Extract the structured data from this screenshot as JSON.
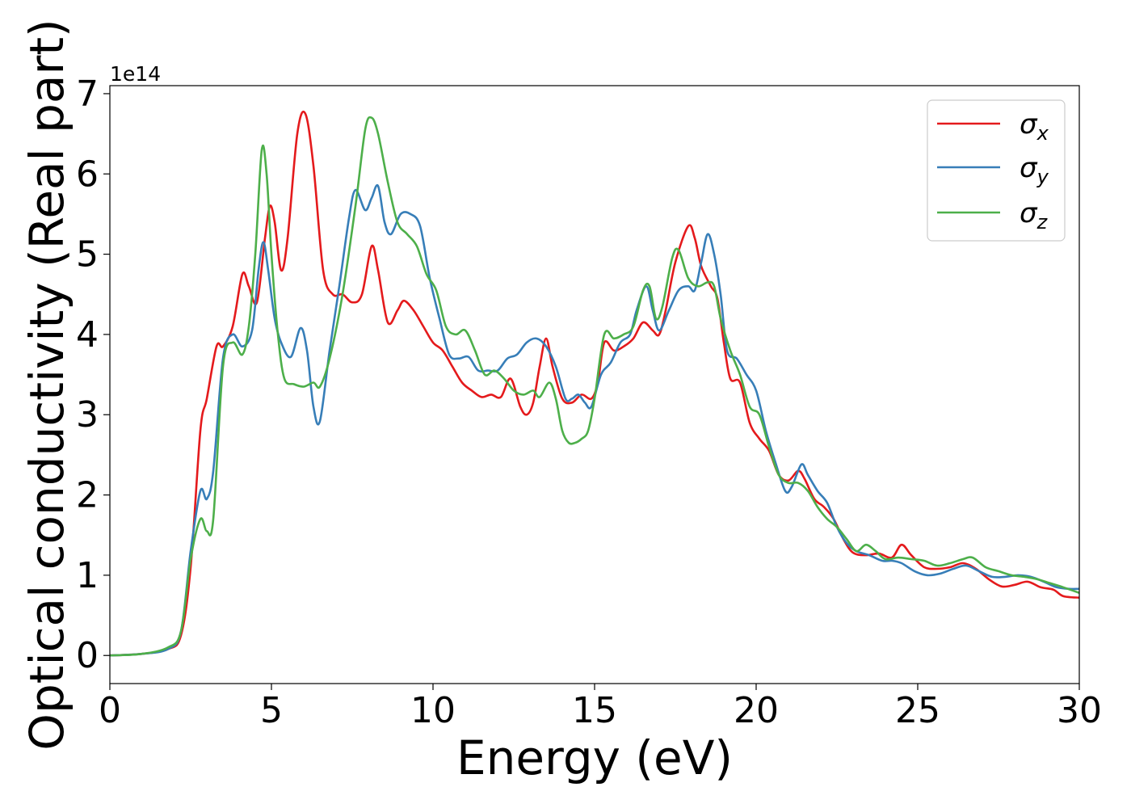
{
  "chart_data": {
    "type": "line",
    "xlabel": "Energy (eV)",
    "ylabel": "Optical conductivity (Real part)",
    "y_offset_label": "1e14",
    "xlim": [
      0,
      30
    ],
    "ylim": [
      -0.35,
      7.1
    ],
    "x_ticks": [
      0,
      5,
      10,
      15,
      20,
      25,
      30
    ],
    "x_tick_labels": [
      "0",
      "5",
      "10",
      "15",
      "20",
      "25",
      "30"
    ],
    "y_ticks": [
      0,
      1,
      2,
      3,
      4,
      5,
      6,
      7
    ],
    "y_tick_labels": [
      "0",
      "1",
      "2",
      "3",
      "4",
      "5",
      "6",
      "7"
    ],
    "grid": false,
    "legend_position": "top-right",
    "series": [
      {
        "name_base": "σ",
        "name_sub": "x",
        "color": "#e41a1c",
        "points": [
          [
            0,
            0
          ],
          [
            1,
            0.02
          ],
          [
            1.8,
            0.08
          ],
          [
            2.2,
            0.25
          ],
          [
            2.5,
            1.1
          ],
          [
            2.8,
            2.8
          ],
          [
            3,
            3.2
          ],
          [
            3.3,
            3.85
          ],
          [
            3.5,
            3.85
          ],
          [
            3.8,
            4.1
          ],
          [
            4.1,
            4.75
          ],
          [
            4.3,
            4.6
          ],
          [
            4.55,
            4.4
          ],
          [
            4.8,
            5.2
          ],
          [
            4.95,
            5.6
          ],
          [
            5.1,
            5.4
          ],
          [
            5.3,
            4.8
          ],
          [
            5.5,
            5.2
          ],
          [
            5.8,
            6.5
          ],
          [
            6.05,
            6.75
          ],
          [
            6.3,
            6.1
          ],
          [
            6.6,
            4.8
          ],
          [
            6.9,
            4.5
          ],
          [
            7.2,
            4.5
          ],
          [
            7.5,
            4.4
          ],
          [
            7.8,
            4.5
          ],
          [
            8.1,
            5.1
          ],
          [
            8.3,
            4.8
          ],
          [
            8.6,
            4.15
          ],
          [
            8.9,
            4.3
          ],
          [
            9.1,
            4.42
          ],
          [
            9.4,
            4.3
          ],
          [
            9.7,
            4.1
          ],
          [
            10,
            3.9
          ],
          [
            10.3,
            3.8
          ],
          [
            10.6,
            3.6
          ],
          [
            10.9,
            3.4
          ],
          [
            11.2,
            3.3
          ],
          [
            11.5,
            3.22
          ],
          [
            11.8,
            3.25
          ],
          [
            12.1,
            3.22
          ],
          [
            12.4,
            3.45
          ],
          [
            12.7,
            3.1
          ],
          [
            12.9,
            3.0
          ],
          [
            13.1,
            3.15
          ],
          [
            13.3,
            3.6
          ],
          [
            13.5,
            3.95
          ],
          [
            13.7,
            3.6
          ],
          [
            14,
            3.2
          ],
          [
            14.3,
            3.15
          ],
          [
            14.6,
            3.25
          ],
          [
            14.9,
            3.2
          ],
          [
            15.1,
            3.4
          ],
          [
            15.3,
            3.9
          ],
          [
            15.6,
            3.8
          ],
          [
            15.9,
            3.85
          ],
          [
            16.2,
            3.95
          ],
          [
            16.5,
            4.15
          ],
          [
            16.8,
            4.05
          ],
          [
            17,
            4.0
          ],
          [
            17.2,
            4.3
          ],
          [
            17.5,
            4.9
          ],
          [
            17.9,
            5.35
          ],
          [
            18.1,
            5.2
          ],
          [
            18.3,
            4.85
          ],
          [
            18.6,
            4.6
          ],
          [
            18.8,
            4.45
          ],
          [
            19,
            3.9
          ],
          [
            19.2,
            3.45
          ],
          [
            19.5,
            3.4
          ],
          [
            19.8,
            2.9
          ],
          [
            20.1,
            2.7
          ],
          [
            20.4,
            2.55
          ],
          [
            20.7,
            2.25
          ],
          [
            21,
            2.18
          ],
          [
            21.3,
            2.3
          ],
          [
            21.5,
            2.2
          ],
          [
            21.8,
            1.95
          ],
          [
            22.1,
            1.85
          ],
          [
            22.4,
            1.7
          ],
          [
            22.7,
            1.45
          ],
          [
            23,
            1.28
          ],
          [
            23.4,
            1.25
          ],
          [
            23.8,
            1.27
          ],
          [
            24.2,
            1.22
          ],
          [
            24.5,
            1.38
          ],
          [
            24.8,
            1.25
          ],
          [
            25.2,
            1.1
          ],
          [
            25.6,
            1.08
          ],
          [
            26,
            1.1
          ],
          [
            26.4,
            1.15
          ],
          [
            26.8,
            1.08
          ],
          [
            27.2,
            0.95
          ],
          [
            27.6,
            0.86
          ],
          [
            28,
            0.88
          ],
          [
            28.4,
            0.92
          ],
          [
            28.8,
            0.85
          ],
          [
            29.2,
            0.82
          ],
          [
            29.5,
            0.74
          ],
          [
            30,
            0.72
          ]
        ]
      },
      {
        "name_base": "σ",
        "name_sub": "y",
        "color": "#377eb8",
        "points": [
          [
            0,
            0
          ],
          [
            1,
            0.02
          ],
          [
            1.8,
            0.08
          ],
          [
            2.2,
            0.3
          ],
          [
            2.5,
            1.3
          ],
          [
            2.8,
            2.05
          ],
          [
            3,
            1.95
          ],
          [
            3.2,
            2.3
          ],
          [
            3.5,
            3.7
          ],
          [
            3.8,
            4.0
          ],
          [
            4.1,
            3.85
          ],
          [
            4.4,
            4.05
          ],
          [
            4.6,
            4.8
          ],
          [
            4.75,
            5.15
          ],
          [
            4.9,
            4.8
          ],
          [
            5.1,
            4.2
          ],
          [
            5.3,
            3.9
          ],
          [
            5.6,
            3.72
          ],
          [
            5.9,
            4.08
          ],
          [
            6.1,
            3.8
          ],
          [
            6.3,
            3.1
          ],
          [
            6.5,
            2.92
          ],
          [
            6.8,
            3.8
          ],
          [
            7.1,
            4.6
          ],
          [
            7.4,
            5.45
          ],
          [
            7.6,
            5.8
          ],
          [
            7.9,
            5.55
          ],
          [
            8.1,
            5.7
          ],
          [
            8.3,
            5.85
          ],
          [
            8.5,
            5.4
          ],
          [
            8.7,
            5.25
          ],
          [
            9,
            5.5
          ],
          [
            9.3,
            5.5
          ],
          [
            9.6,
            5.35
          ],
          [
            9.9,
            4.7
          ],
          [
            10.2,
            4.2
          ],
          [
            10.5,
            3.75
          ],
          [
            10.8,
            3.7
          ],
          [
            11.1,
            3.72
          ],
          [
            11.4,
            3.55
          ],
          [
            11.7,
            3.55
          ],
          [
            12,
            3.55
          ],
          [
            12.3,
            3.7
          ],
          [
            12.6,
            3.75
          ],
          [
            12.9,
            3.9
          ],
          [
            13.2,
            3.95
          ],
          [
            13.5,
            3.85
          ],
          [
            13.8,
            3.6
          ],
          [
            14.1,
            3.2
          ],
          [
            14.3,
            3.2
          ],
          [
            14.5,
            3.25
          ],
          [
            14.7,
            3.15
          ],
          [
            14.9,
            3.1
          ],
          [
            15.2,
            3.5
          ],
          [
            15.5,
            3.65
          ],
          [
            15.8,
            3.9
          ],
          [
            16.1,
            4.0
          ],
          [
            16.3,
            4.3
          ],
          [
            16.6,
            4.6
          ],
          [
            16.8,
            4.3
          ],
          [
            17,
            4.05
          ],
          [
            17.3,
            4.3
          ],
          [
            17.6,
            4.55
          ],
          [
            17.9,
            4.6
          ],
          [
            18.1,
            4.55
          ],
          [
            18.3,
            4.9
          ],
          [
            18.5,
            5.25
          ],
          [
            18.7,
            5.0
          ],
          [
            18.9,
            4.5
          ],
          [
            19.1,
            3.8
          ],
          [
            19.4,
            3.7
          ],
          [
            19.7,
            3.5
          ],
          [
            20,
            3.3
          ],
          [
            20.3,
            2.8
          ],
          [
            20.6,
            2.4
          ],
          [
            20.9,
            2.05
          ],
          [
            21.1,
            2.1
          ],
          [
            21.4,
            2.38
          ],
          [
            21.6,
            2.25
          ],
          [
            21.9,
            2.05
          ],
          [
            22.2,
            1.9
          ],
          [
            22.5,
            1.6
          ],
          [
            22.8,
            1.4
          ],
          [
            23.1,
            1.3
          ],
          [
            23.5,
            1.25
          ],
          [
            23.9,
            1.18
          ],
          [
            24.2,
            1.18
          ],
          [
            24.5,
            1.15
          ],
          [
            24.9,
            1.05
          ],
          [
            25.3,
            1.0
          ],
          [
            25.7,
            1.02
          ],
          [
            26.1,
            1.08
          ],
          [
            26.5,
            1.12
          ],
          [
            26.9,
            1.05
          ],
          [
            27.3,
            0.98
          ],
          [
            27.7,
            0.98
          ],
          [
            28.1,
            1.0
          ],
          [
            28.5,
            0.98
          ],
          [
            28.9,
            0.92
          ],
          [
            29.3,
            0.85
          ],
          [
            29.7,
            0.83
          ],
          [
            30,
            0.83
          ]
        ]
      },
      {
        "name_base": "σ",
        "name_sub": "z",
        "color": "#4daf4a",
        "points": [
          [
            0,
            0
          ],
          [
            1,
            0.02
          ],
          [
            1.8,
            0.1
          ],
          [
            2.2,
            0.3
          ],
          [
            2.5,
            1.2
          ],
          [
            2.8,
            1.7
          ],
          [
            3,
            1.55
          ],
          [
            3.2,
            1.7
          ],
          [
            3.5,
            3.6
          ],
          [
            3.8,
            3.9
          ],
          [
            4.1,
            3.75
          ],
          [
            4.3,
            4.1
          ],
          [
            4.5,
            5.0
          ],
          [
            4.7,
            6.3
          ],
          [
            4.85,
            6.0
          ],
          [
            5.0,
            5.0
          ],
          [
            5.2,
            4.0
          ],
          [
            5.4,
            3.45
          ],
          [
            5.7,
            3.38
          ],
          [
            6.0,
            3.35
          ],
          [
            6.3,
            3.4
          ],
          [
            6.5,
            3.35
          ],
          [
            6.8,
            3.7
          ],
          [
            7.2,
            4.5
          ],
          [
            7.6,
            5.6
          ],
          [
            7.9,
            6.55
          ],
          [
            8.1,
            6.7
          ],
          [
            8.3,
            6.5
          ],
          [
            8.6,
            5.9
          ],
          [
            8.9,
            5.4
          ],
          [
            9.2,
            5.25
          ],
          [
            9.5,
            5.1
          ],
          [
            9.8,
            4.75
          ],
          [
            10.1,
            4.55
          ],
          [
            10.4,
            4.1
          ],
          [
            10.7,
            4.0
          ],
          [
            11,
            4.05
          ],
          [
            11.3,
            3.8
          ],
          [
            11.6,
            3.5
          ],
          [
            11.9,
            3.55
          ],
          [
            12.2,
            3.45
          ],
          [
            12.5,
            3.3
          ],
          [
            12.8,
            3.25
          ],
          [
            13.1,
            3.3
          ],
          [
            13.3,
            3.22
          ],
          [
            13.6,
            3.4
          ],
          [
            13.8,
            3.2
          ],
          [
            14.0,
            2.8
          ],
          [
            14.2,
            2.65
          ],
          [
            14.4,
            2.65
          ],
          [
            14.6,
            2.7
          ],
          [
            14.8,
            2.8
          ],
          [
            15.0,
            3.2
          ],
          [
            15.3,
            4.0
          ],
          [
            15.6,
            3.95
          ],
          [
            15.9,
            4.0
          ],
          [
            16.2,
            4.1
          ],
          [
            16.5,
            4.55
          ],
          [
            16.7,
            4.6
          ],
          [
            16.9,
            4.2
          ],
          [
            17.1,
            4.35
          ],
          [
            17.4,
            4.95
          ],
          [
            17.6,
            5.05
          ],
          [
            17.9,
            4.7
          ],
          [
            18.2,
            4.6
          ],
          [
            18.5,
            4.65
          ],
          [
            18.7,
            4.6
          ],
          [
            18.9,
            4.2
          ],
          [
            19.2,
            3.8
          ],
          [
            19.5,
            3.5
          ],
          [
            19.8,
            3.1
          ],
          [
            20.1,
            3.0
          ],
          [
            20.4,
            2.6
          ],
          [
            20.7,
            2.25
          ],
          [
            21,
            2.15
          ],
          [
            21.3,
            2.15
          ],
          [
            21.6,
            2.05
          ],
          [
            21.9,
            1.85
          ],
          [
            22.2,
            1.7
          ],
          [
            22.5,
            1.6
          ],
          [
            22.8,
            1.45
          ],
          [
            23.1,
            1.3
          ],
          [
            23.4,
            1.38
          ],
          [
            23.7,
            1.3
          ],
          [
            24,
            1.2
          ],
          [
            24.4,
            1.22
          ],
          [
            24.8,
            1.2
          ],
          [
            25.2,
            1.18
          ],
          [
            25.6,
            1.12
          ],
          [
            26,
            1.15
          ],
          [
            26.4,
            1.2
          ],
          [
            26.7,
            1.22
          ],
          [
            27.1,
            1.1
          ],
          [
            27.5,
            1.05
          ],
          [
            27.9,
            1.0
          ],
          [
            28.3,
            0.98
          ],
          [
            28.7,
            0.95
          ],
          [
            29.1,
            0.9
          ],
          [
            29.5,
            0.85
          ],
          [
            30,
            0.78
          ]
        ]
      }
    ]
  }
}
